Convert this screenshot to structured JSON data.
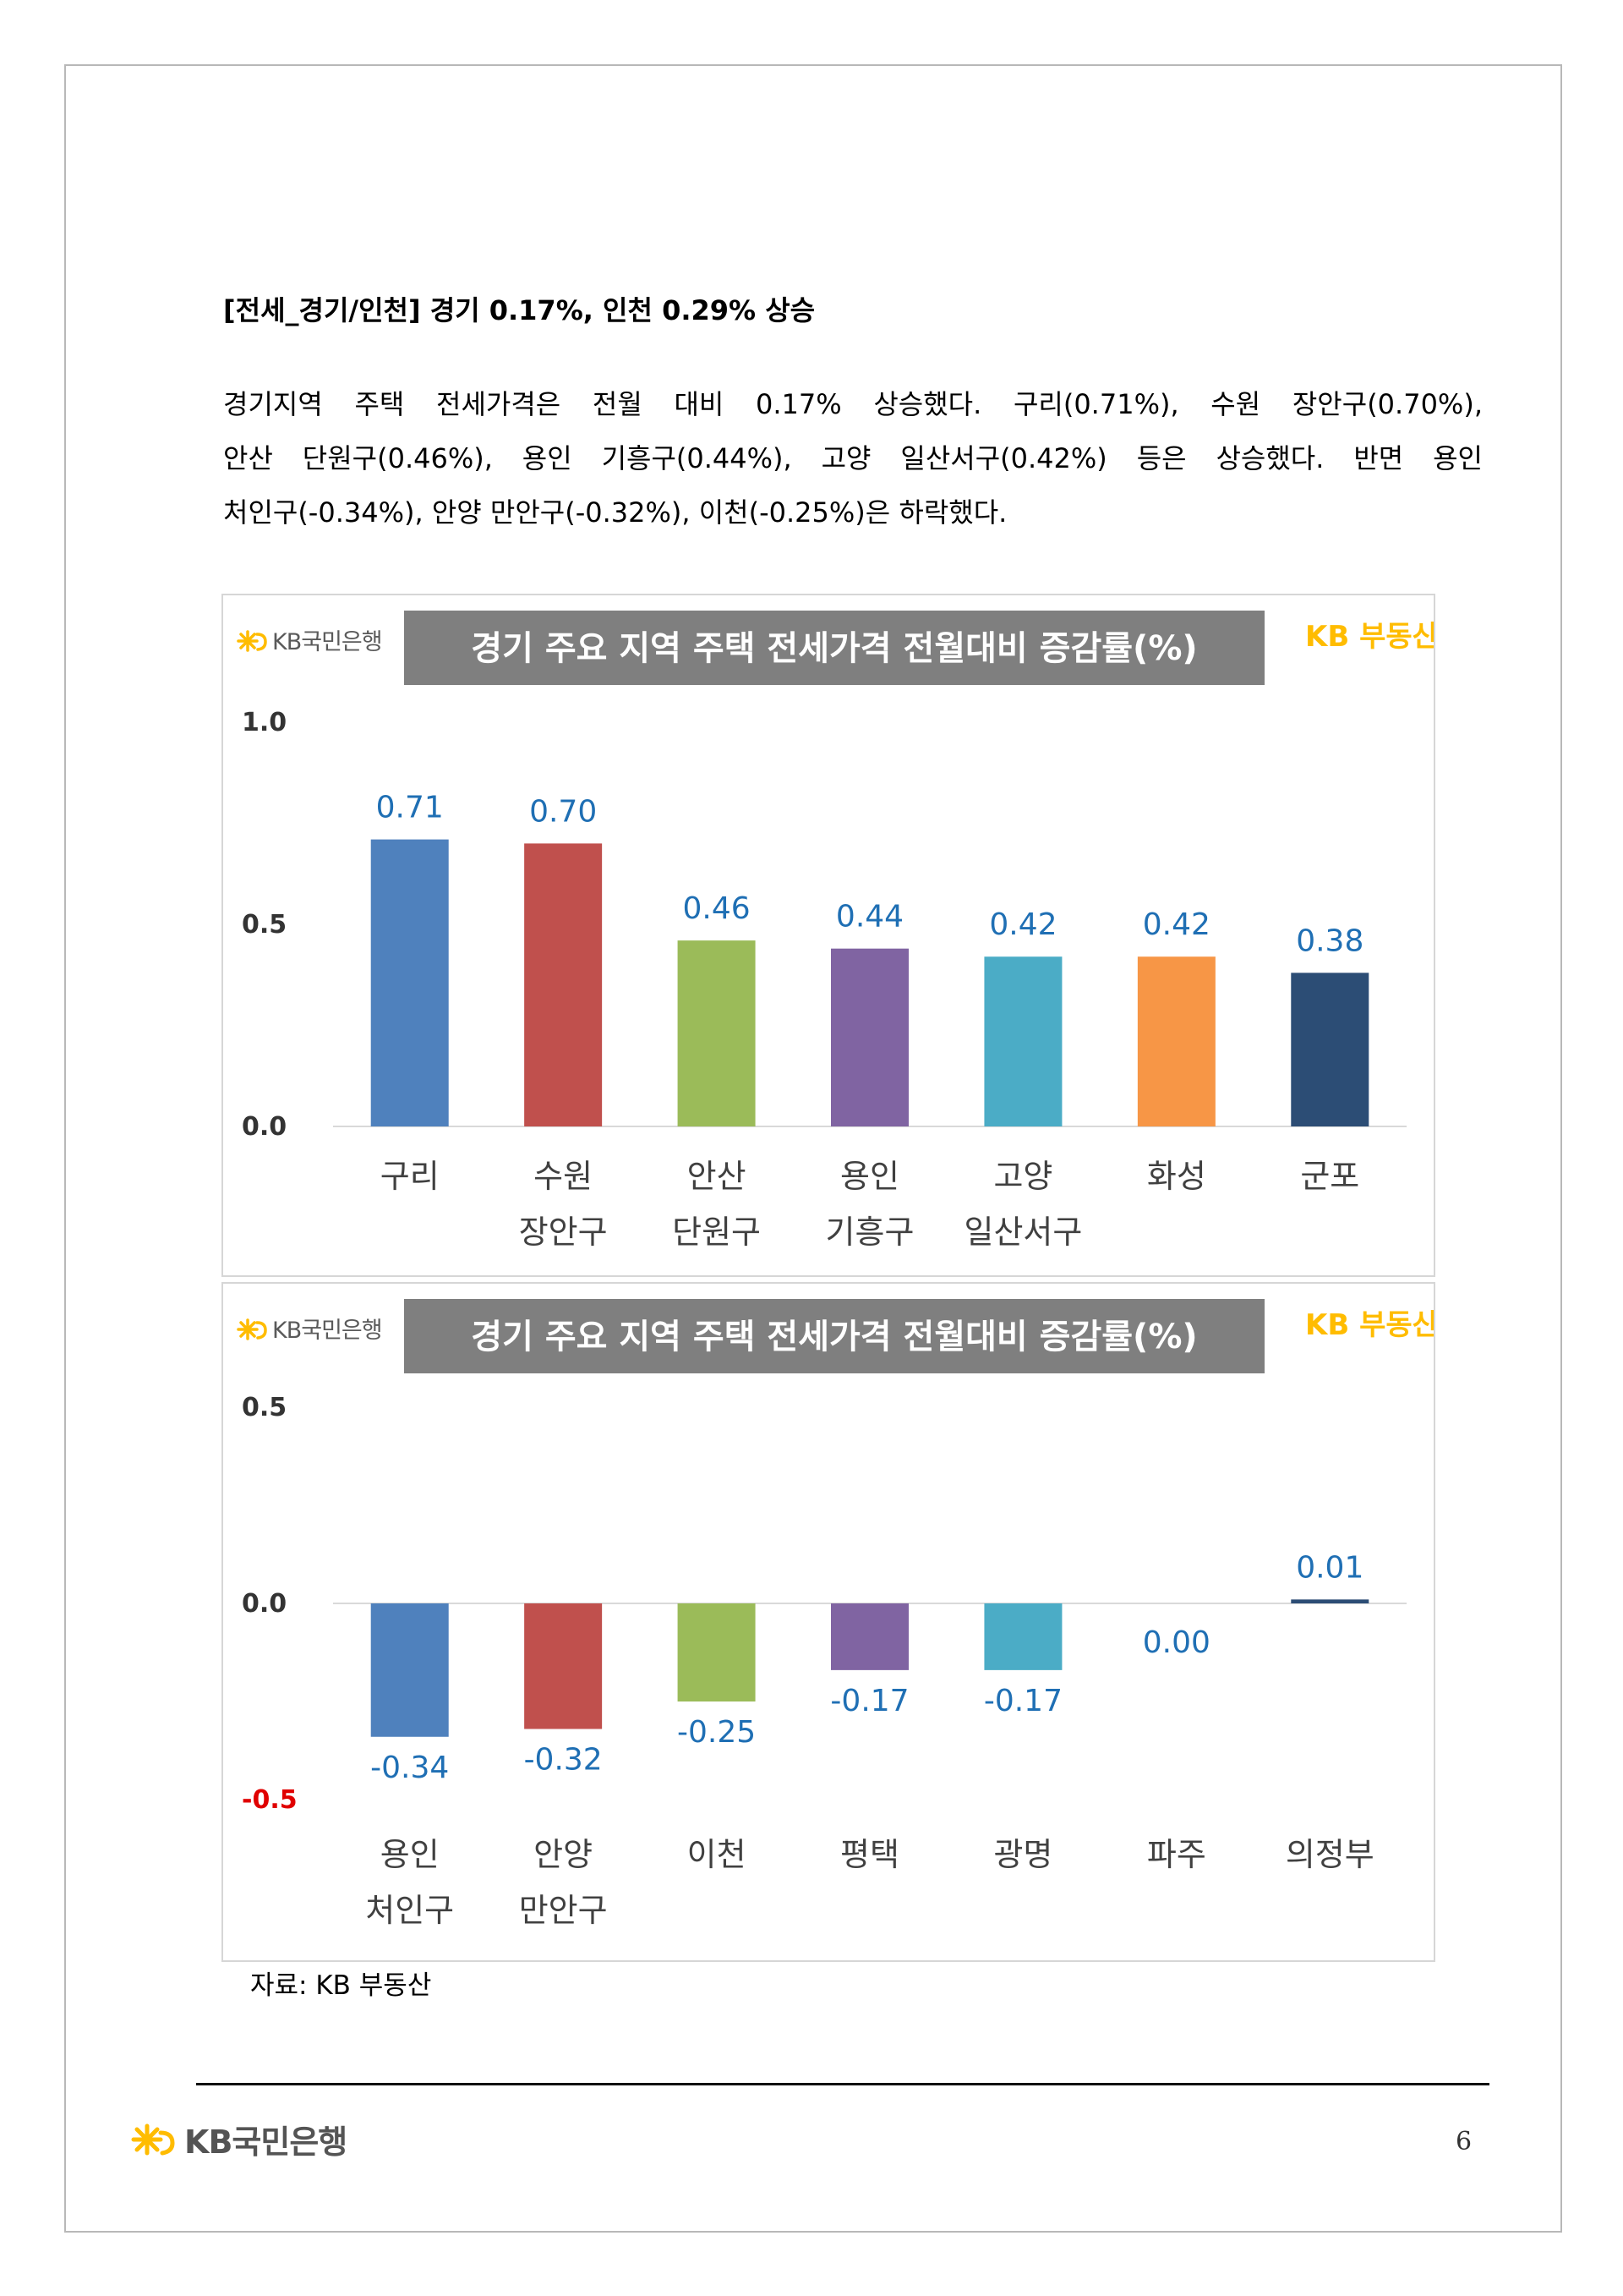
{
  "heading": "[전세_경기/인천] 경기 0.17%, 인천 0.29% 상승",
  "paragraph_lines": [
    "경기지역 주택 전세가격은 전월 대비 0.17% 상승했다. 구리(0.71%), 수원 장안구(0.70%),",
    "안산 단원구(0.46%), 용인 기흥구(0.44%), 고양 일산서구(0.42%) 등은 상승했다. 반면 용인",
    "처인구(-0.34%), 안양 만안구(-0.32%), 이천(-0.25%)은 하락했다."
  ],
  "logos": {
    "kb_bank_text": "KB국민은행",
    "kb_realestate_text": "KB 부동산",
    "brand_color": "#ffbc00",
    "logo_gray": "#5a5a5a"
  },
  "chart_data": [
    {
      "type": "bar",
      "title": "경기 주요 지역 주택 전세가격 전월대비 증감률(%)",
      "categories": [
        [
          "구리"
        ],
        [
          "수원",
          "장안구"
        ],
        [
          "안산",
          "단원구"
        ],
        [
          "용인",
          "기흥구"
        ],
        [
          "고양",
          "일산서구"
        ],
        [
          "화성"
        ],
        [
          "군포"
        ]
      ],
      "values": [
        0.71,
        0.7,
        0.46,
        0.44,
        0.42,
        0.42,
        0.38
      ],
      "value_labels": [
        "0.71",
        "0.70",
        "0.46",
        "0.44",
        "0.42",
        "0.42",
        "0.38"
      ],
      "colors": [
        "#4f81bd",
        "#c0504d",
        "#9bbb59",
        "#8064a2",
        "#4bacc6",
        "#f79646",
        "#2c4d75"
      ],
      "yticks": [
        "1.0",
        "0.5",
        "0.0"
      ],
      "ylim": [
        0,
        1.0
      ],
      "grid": false
    },
    {
      "type": "bar",
      "title": "경기 주요 지역 주택 전세가격 전월대비 증감률(%)",
      "categories": [
        [
          "용인",
          "처인구"
        ],
        [
          "안양",
          "만안구"
        ],
        [
          "이천"
        ],
        [
          "평택"
        ],
        [
          "광명"
        ],
        [
          "파주"
        ],
        [
          "의정부"
        ]
      ],
      "values": [
        -0.34,
        -0.32,
        -0.25,
        -0.17,
        -0.17,
        0.0,
        0.01
      ],
      "value_labels": [
        "-0.34",
        "-0.32",
        "-0.25",
        "-0.17",
        "-0.17",
        "0.00",
        "0.01"
      ],
      "colors": [
        "#4f81bd",
        "#c0504d",
        "#9bbb59",
        "#8064a2",
        "#4bacc6",
        "#f79646",
        "#2c4d75"
      ],
      "yticks": [
        "0.5",
        "0.0",
        "-0.5"
      ],
      "ytick_colors": [
        "#333333",
        "#333333",
        "#e00000"
      ],
      "ylim": [
        -0.5,
        0.5
      ],
      "grid": false
    }
  ],
  "source": "자료: KB 부동산",
  "page_number": "6",
  "colors": {
    "label_blue": "#1f6fb4",
    "title_bg": "#7f7f7f",
    "axis_text": "#333333",
    "category_text": "#404040"
  }
}
